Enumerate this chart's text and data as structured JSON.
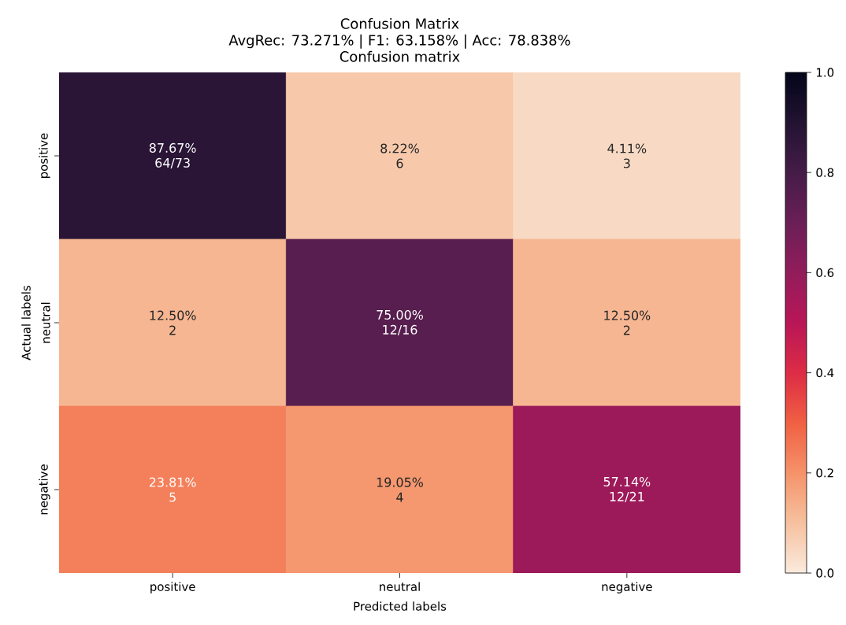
{
  "chart_data": {
    "type": "heatmap",
    "title": "Confusion Matrix",
    "subtitle": "AvgRec: 73.271% | F1: 63.158% | Acc:  78.838%",
    "annotations": [
      "Confusion matrix"
    ],
    "xlabel": "Predicted labels",
    "ylabel": "Actual labels",
    "categories": [
      "positive",
      "neutral",
      "negative"
    ],
    "y_categories": [
      "positive",
      "neutral",
      "negative"
    ],
    "cells": [
      [
        0.8767,
        0.0822,
        0.0411
      ],
      [
        0.125,
        0.75,
        0.125
      ],
      [
        0.2381,
        0.1905,
        0.5714
      ]
    ],
    "cell_labels": [
      [
        [
          "87.67%",
          "64/73"
        ],
        [
          "8.22%",
          "6"
        ],
        [
          "4.11%",
          "3"
        ]
      ],
      [
        [
          "12.50%",
          "2"
        ],
        [
          "75.00%",
          "12/16"
        ],
        [
          "12.50%",
          "2"
        ]
      ],
      [
        [
          "23.81%",
          "5"
        ],
        [
          "19.05%",
          "4"
        ],
        [
          "57.14%",
          "12/21"
        ]
      ]
    ],
    "clim": [
      0,
      1
    ],
    "cticks": [
      {
        "value": 0,
        "label": "0.0"
      },
      {
        "value": 0.2,
        "label": "0.2"
      },
      {
        "value": 0.4,
        "label": "0.4"
      },
      {
        "value": 0.6,
        "label": "0.6"
      },
      {
        "value": 0.8,
        "label": "0.8"
      },
      {
        "value": 1,
        "label": "1.0"
      }
    ]
  }
}
